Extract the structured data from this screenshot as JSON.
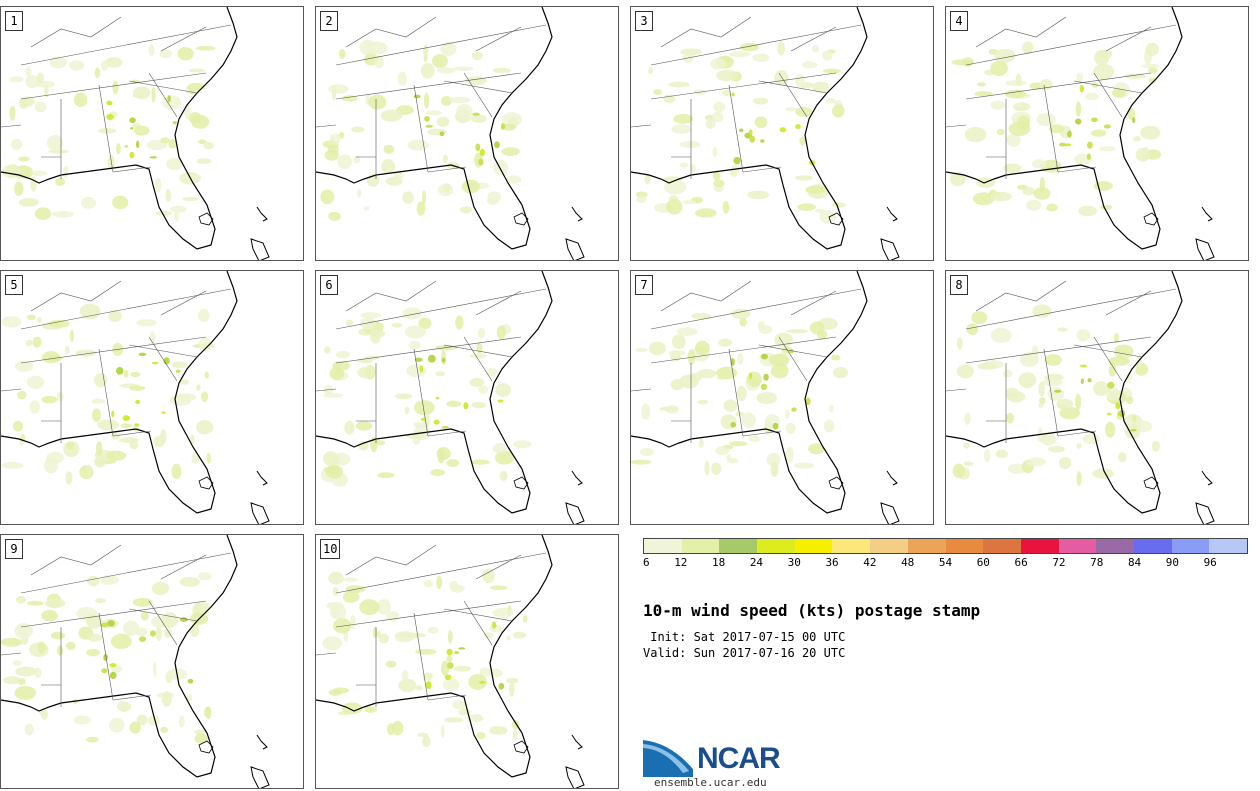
{
  "panels": [
    "1",
    "2",
    "3",
    "4",
    "5",
    "6",
    "7",
    "8",
    "9",
    "10"
  ],
  "colorbar": {
    "colors": [
      "#f0f4d8",
      "#e3f0a8",
      "#a6c96a",
      "#dcec1e",
      "#f7ef00",
      "#fbe77a",
      "#f3cf86",
      "#eba55b",
      "#e88b3f",
      "#dd7541",
      "#e8143f",
      "#e45da3",
      "#9a6aa6",
      "#6a6cf0",
      "#8a9cf5",
      "#b7c7f6"
    ],
    "ticks": [
      "6",
      "12",
      "18",
      "24",
      "30",
      "36",
      "42",
      "48",
      "54",
      "60",
      "66",
      "72",
      "78",
      "84",
      "90",
      "96"
    ]
  },
  "title": "10-m wind speed (kts) postage stamp",
  "init": " Init: Sat 2017-07-15 00 UTC",
  "valid": "Valid: Sun 2017-07-16 20 UTC",
  "logo": {
    "name": "NCAR",
    "url": "ensemble.ucar.edu"
  }
}
